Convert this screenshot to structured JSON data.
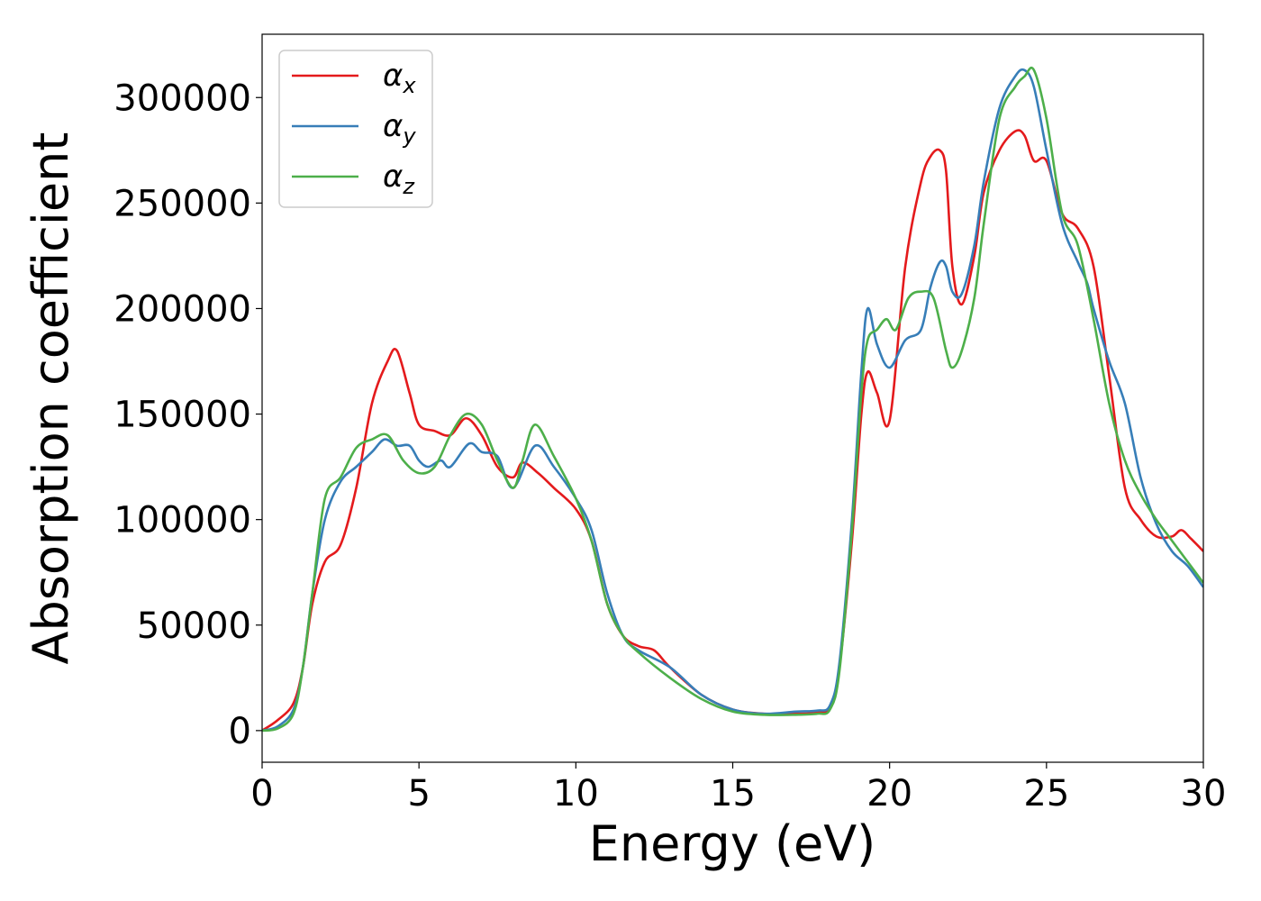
{
  "chart_data": {
    "type": "line",
    "xlabel": "Energy (eV)",
    "ylabel": "Absorption coefficient",
    "xlim": [
      0,
      30
    ],
    "ylim": [
      -15000,
      330000
    ],
    "xticks": [
      0,
      5,
      10,
      15,
      20,
      25,
      30
    ],
    "yticks": [
      0,
      50000,
      100000,
      150000,
      200000,
      250000,
      300000
    ],
    "grid": false,
    "legend_position": "top-left",
    "series": [
      {
        "name": "α",
        "subscript": "x",
        "color": "#e41a1c",
        "x": [
          0,
          0.5,
          1,
          1.3,
          1.6,
          2,
          2.5,
          3,
          3.5,
          4,
          4.3,
          4.7,
          5,
          5.5,
          6,
          6.5,
          7,
          7.5,
          8,
          8.3,
          8.8,
          9.3,
          10,
          10.5,
          11,
          11.5,
          12,
          12.5,
          13,
          14,
          15,
          16,
          17,
          17.7,
          18.1,
          18.4,
          18.8,
          19.1,
          19.3,
          19.6,
          20,
          20.5,
          21,
          21.3,
          21.6,
          21.8,
          22,
          22.3,
          22.7,
          23,
          23.5,
          24,
          24.3,
          24.6,
          25,
          25.5,
          26,
          26.5,
          27,
          27.5,
          28,
          28.5,
          29,
          29.3,
          29.6,
          30
        ],
        "y": [
          0,
          5000,
          13000,
          30000,
          60000,
          80000,
          88000,
          115000,
          155000,
          175000,
          180000,
          160000,
          145000,
          142000,
          140000,
          148000,
          140000,
          125000,
          120000,
          127000,
          122000,
          115000,
          105000,
          90000,
          60000,
          45000,
          40000,
          38000,
          30000,
          17000,
          10000,
          8000,
          8000,
          8500,
          11000,
          30000,
          90000,
          150000,
          170000,
          160000,
          147000,
          220000,
          260000,
          272000,
          275000,
          265000,
          220000,
          202000,
          225000,
          255000,
          275000,
          284000,
          282000,
          270000,
          270000,
          245000,
          238000,
          220000,
          168000,
          115000,
          100000,
          92000,
          92000,
          95000,
          91000,
          85000
        ]
      },
      {
        "name": "α",
        "subscript": "y",
        "color": "#377eb8",
        "x": [
          0,
          0.5,
          1,
          1.3,
          1.6,
          2,
          2.5,
          3,
          3.5,
          3.9,
          4.3,
          4.7,
          5,
          5.3,
          5.7,
          6,
          6.6,
          7,
          7.5,
          8,
          8.7,
          9.3,
          10,
          10.5,
          11,
          11.5,
          12,
          13,
          14,
          15,
          16,
          17,
          17.7,
          18.1,
          18.4,
          18.8,
          19.1,
          19.3,
          19.6,
          20,
          20.5,
          21,
          21.3,
          21.6,
          21.8,
          22,
          22.3,
          22.7,
          23,
          23.5,
          24,
          24.3,
          24.6,
          25,
          25.5,
          26,
          26.3,
          26.5,
          27,
          27.5,
          28,
          28.5,
          29,
          29.5,
          30
        ],
        "y": [
          0,
          2000,
          10000,
          30000,
          65000,
          100000,
          118000,
          125000,
          132000,
          138000,
          135000,
          135000,
          128000,
          125000,
          128000,
          125000,
          136000,
          132000,
          130000,
          115000,
          135000,
          125000,
          110000,
          95000,
          65000,
          45000,
          38000,
          30000,
          17000,
          10000,
          8000,
          9000,
          9500,
          12000,
          32000,
          100000,
          170000,
          200000,
          183000,
          172000,
          185000,
          190000,
          210000,
          222000,
          220000,
          208000,
          207000,
          230000,
          260000,
          295000,
          310000,
          313000,
          305000,
          275000,
          240000,
          222000,
          212000,
          200000,
          175000,
          155000,
          120000,
          98000,
          85000,
          78000,
          68000
        ]
      },
      {
        "name": "α",
        "subscript": "z",
        "color": "#4daf4a",
        "x": [
          0,
          0.5,
          1,
          1.3,
          1.6,
          2,
          2.5,
          3,
          3.5,
          4,
          4.5,
          5,
          5.5,
          6,
          6.5,
          7,
          7.5,
          8,
          8.3,
          8.7,
          9.3,
          10,
          10.5,
          11,
          11.5,
          12,
          13,
          14,
          15,
          16,
          17,
          17.7,
          18.1,
          18.4,
          18.8,
          19.1,
          19.3,
          19.6,
          19.9,
          20.2,
          20.6,
          21,
          21.4,
          21.8,
          22,
          22.3,
          22.7,
          23,
          23.5,
          24,
          24.3,
          24.6,
          25,
          25.5,
          26,
          26.5,
          27,
          27.5,
          28,
          28.5,
          29,
          29.5,
          30
        ],
        "y": [
          0,
          1000,
          8000,
          30000,
          65000,
          110000,
          120000,
          134000,
          138000,
          140000,
          128000,
          122000,
          125000,
          140000,
          150000,
          145000,
          128000,
          115000,
          128000,
          145000,
          130000,
          110000,
          90000,
          60000,
          45000,
          37000,
          25000,
          15000,
          9000,
          7500,
          7500,
          8000,
          10000,
          28000,
          95000,
          160000,
          185000,
          190000,
          195000,
          190000,
          205000,
          208000,
          205000,
          180000,
          172000,
          180000,
          205000,
          240000,
          290000,
          305000,
          310000,
          313000,
          290000,
          245000,
          230000,
          195000,
          155000,
          128000,
          112000,
          100000,
          90000,
          80000,
          70000
        ]
      }
    ]
  }
}
